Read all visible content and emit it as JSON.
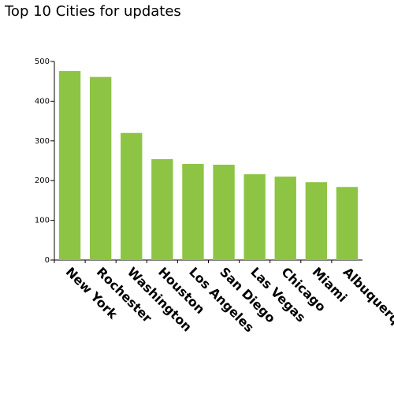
{
  "chart_data": {
    "type": "bar",
    "title": "Top 10 Cities for updates",
    "xlabel": "",
    "ylabel": "",
    "ylim": [
      0,
      500
    ],
    "yticks": [
      0,
      100,
      200,
      300,
      400,
      500
    ],
    "categories": [
      "New York",
      "Rochester",
      "Washington",
      "Houston",
      "Los Angeles",
      "San Diego",
      "Las Vegas",
      "Chicago",
      "Miami",
      "Albuquerque"
    ],
    "values": [
      476,
      461,
      320,
      254,
      242,
      240,
      216,
      210,
      196,
      184
    ],
    "grid": false,
    "legend": "none",
    "bar_color": "#8dc443"
  }
}
